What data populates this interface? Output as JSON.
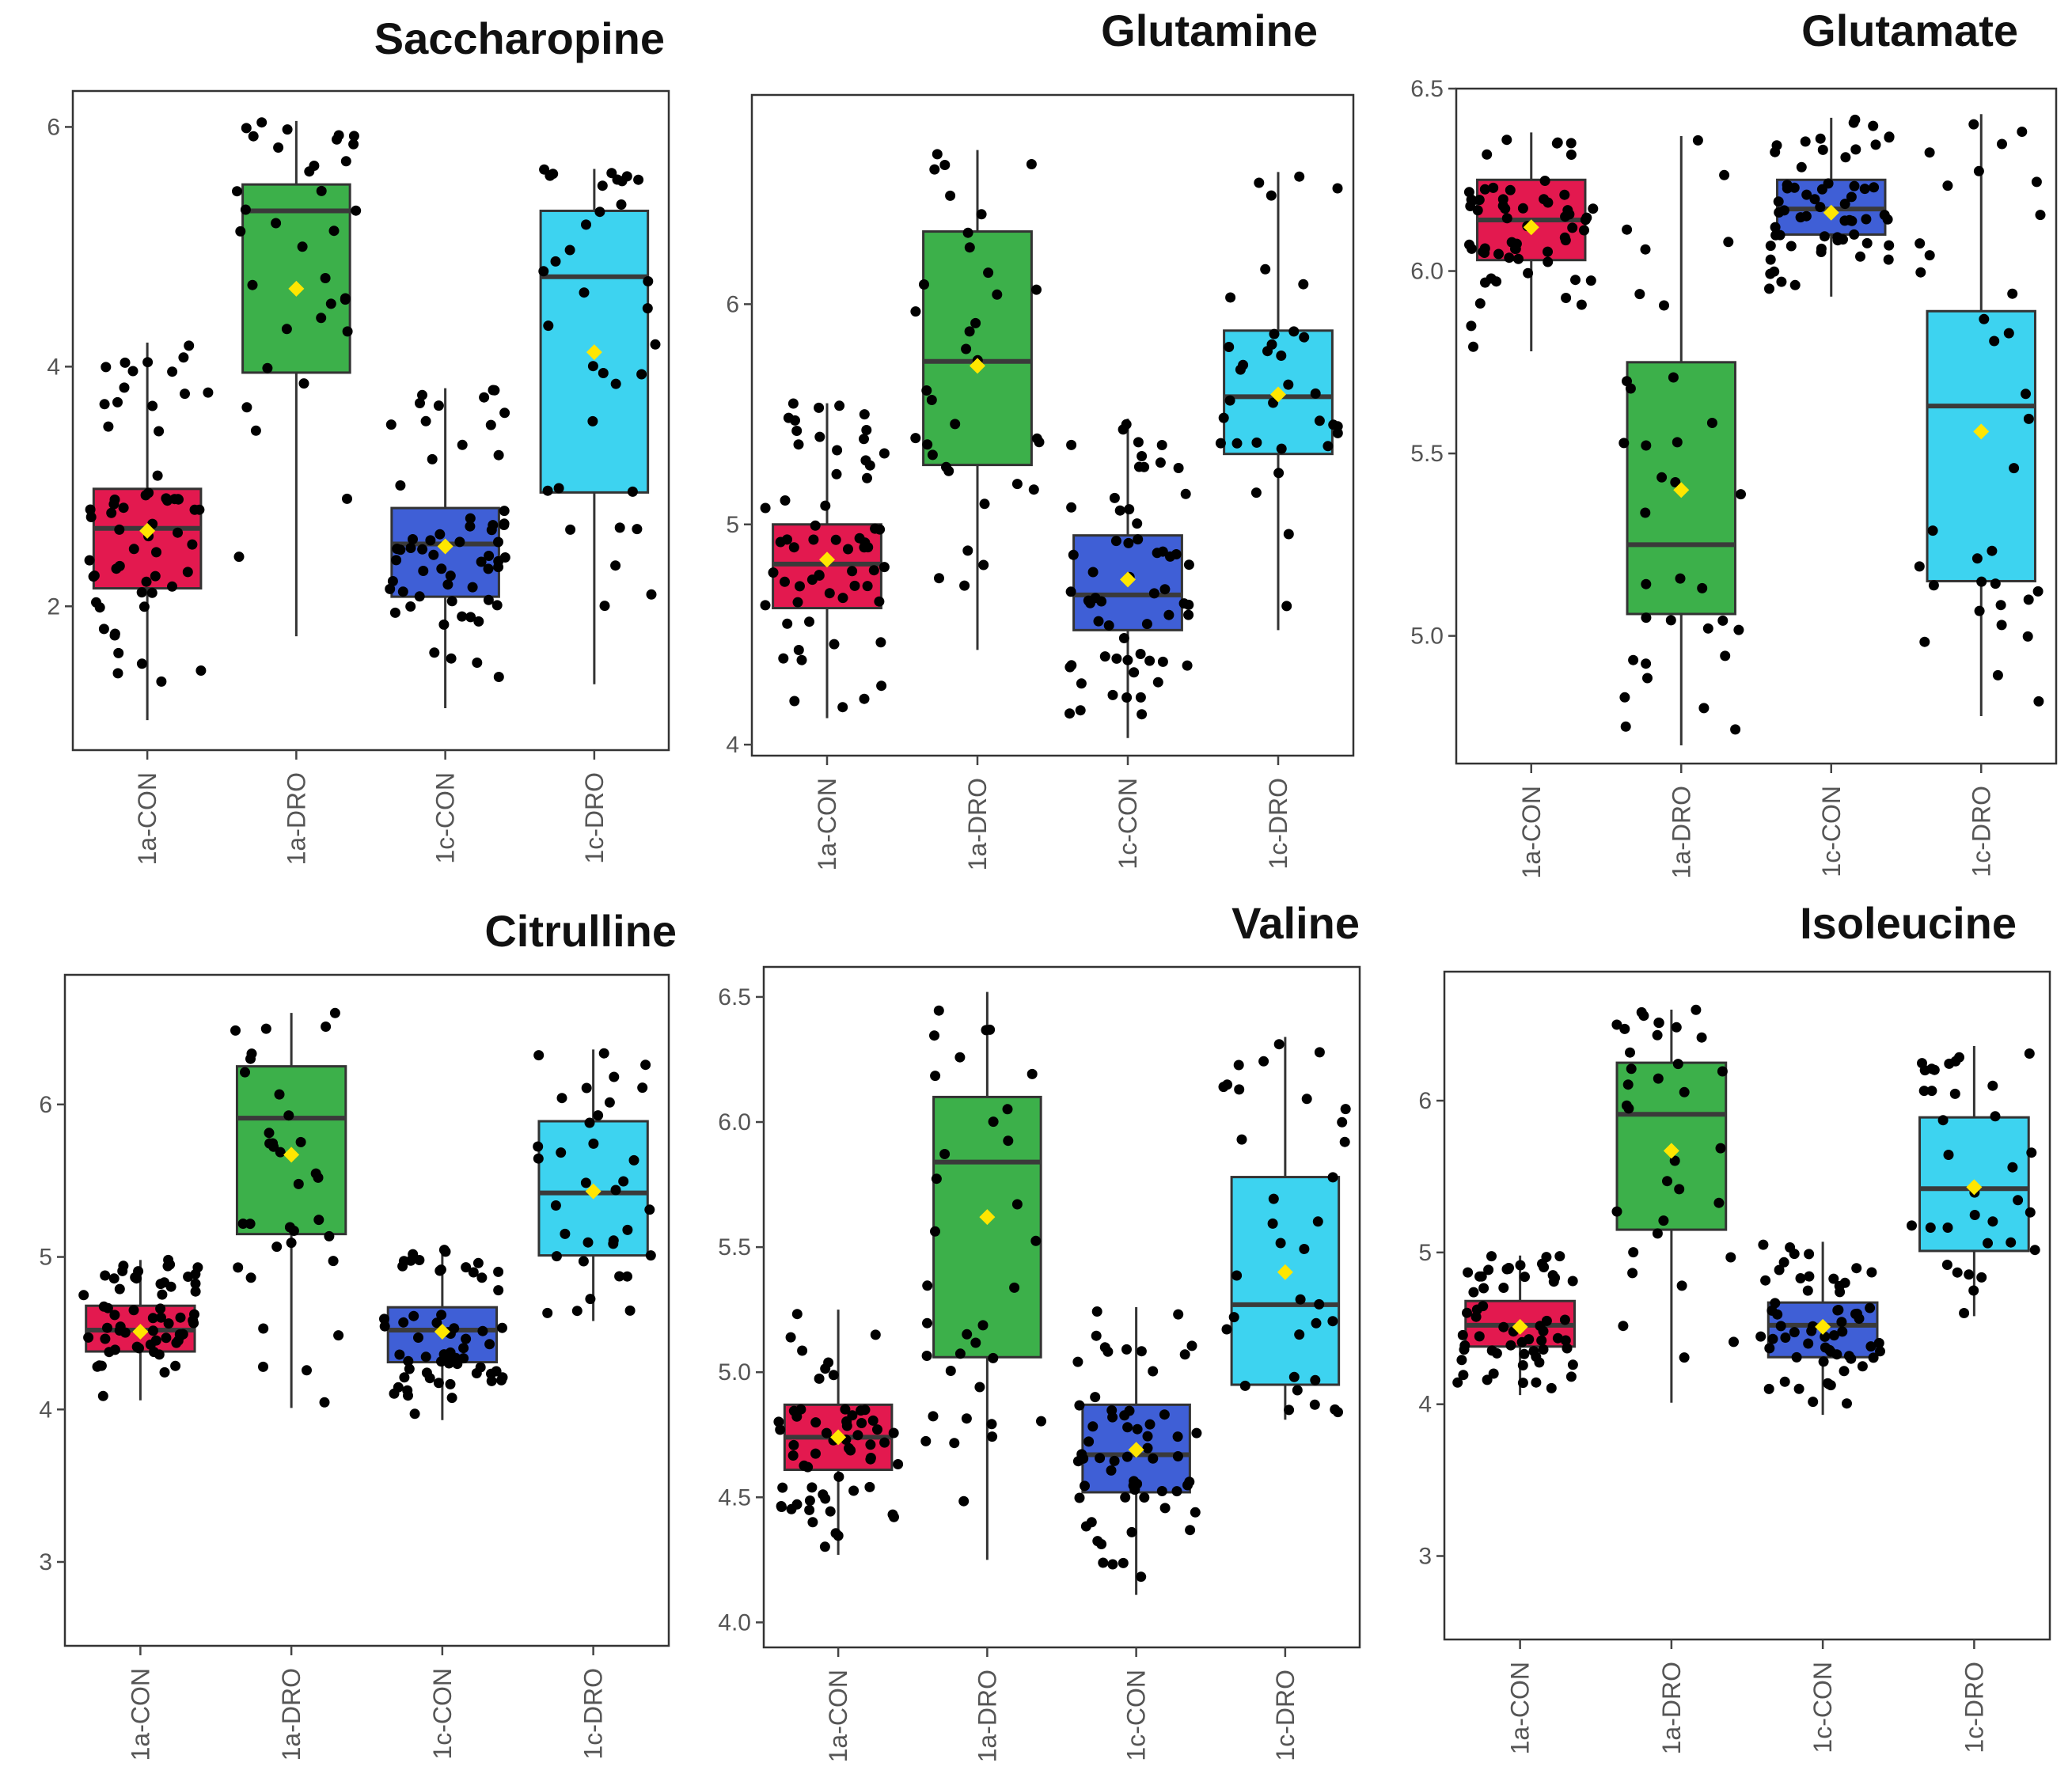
{
  "chart_data": [
    {
      "type": "box",
      "title": "Saccharopine",
      "categories": [
        "1a-CON",
        "1a-DRO",
        "1c-CON",
        "1c-DRO"
      ],
      "yticks": [
        2,
        4,
        6
      ],
      "ylim": [
        0.8,
        6.3
      ],
      "series": [
        {
          "name": "1a-CON",
          "color": "#E3194F",
          "q1": 2.15,
          "median": 2.65,
          "q3": 2.98,
          "whisker_low": 1.05,
          "whisker_high": 4.2,
          "mean": 2.63
        },
        {
          "name": "1a-DRO",
          "color": "#3CB04A",
          "q1": 3.95,
          "median": 5.3,
          "q3": 5.52,
          "whisker_low": 1.75,
          "whisker_high": 6.05,
          "mean": 4.65
        },
        {
          "name": "1c-CON",
          "color": "#3F5FD6",
          "q1": 2.08,
          "median": 2.52,
          "q3": 2.82,
          "whisker_low": 1.15,
          "whisker_high": 3.82,
          "mean": 2.5
        },
        {
          "name": "1c-DRO",
          "color": "#3DD3F0",
          "q1": 2.95,
          "median": 4.75,
          "q3": 5.3,
          "whisker_low": 1.35,
          "whisker_high": 5.65,
          "mean": 4.12
        }
      ]
    },
    {
      "type": "box",
      "title": "Glutamine",
      "categories": [
        "1a-CON",
        "1a-DRO",
        "1c-CON",
        "1c-DRO"
      ],
      "yticks": [
        4,
        5,
        6
      ],
      "ylim": [
        3.95,
        6.95
      ],
      "series": [
        {
          "name": "1a-CON",
          "color": "#E3194F",
          "q1": 4.62,
          "median": 4.82,
          "q3": 5.0,
          "whisker_low": 4.12,
          "whisker_high": 5.55,
          "mean": 4.84
        },
        {
          "name": "1a-DRO",
          "color": "#3CB04A",
          "q1": 5.27,
          "median": 5.74,
          "q3": 6.33,
          "whisker_low": 4.43,
          "whisker_high": 6.7,
          "mean": 5.72
        },
        {
          "name": "1c-CON",
          "color": "#3F5FD6",
          "q1": 4.52,
          "median": 4.68,
          "q3": 4.95,
          "whisker_low": 4.03,
          "whisker_high": 5.48,
          "mean": 4.75
        },
        {
          "name": "1c-DRO",
          "color": "#3DD3F0",
          "q1": 5.32,
          "median": 5.58,
          "q3": 5.88,
          "whisker_low": 4.52,
          "whisker_high": 6.6,
          "mean": 5.59
        }
      ]
    },
    {
      "type": "box",
      "title": "Glutamate",
      "categories": [
        "1a-CON",
        "1a-DRO",
        "1c-CON",
        "1c-DRO"
      ],
      "yticks": [
        5.0,
        5.5,
        6.0,
        6.5
      ],
      "ytick_labels": [
        "5.0",
        "5.5",
        "6.0",
        "6.5"
      ],
      "ylim": [
        4.65,
        6.5
      ],
      "series": [
        {
          "name": "1a-CON",
          "color": "#E3194F",
          "q1": 6.03,
          "median": 6.14,
          "q3": 6.25,
          "whisker_low": 5.78,
          "whisker_high": 6.38,
          "mean": 6.12
        },
        {
          "name": "1a-DRO",
          "color": "#3CB04A",
          "q1": 5.06,
          "median": 5.25,
          "q3": 5.75,
          "whisker_low": 4.7,
          "whisker_high": 6.37,
          "mean": 5.4
        },
        {
          "name": "1c-CON",
          "color": "#3F5FD6",
          "q1": 6.1,
          "median": 6.17,
          "q3": 6.25,
          "whisker_low": 5.93,
          "whisker_high": 6.42,
          "mean": 6.16
        },
        {
          "name": "1c-DRO",
          "color": "#3DD3F0",
          "q1": 5.15,
          "median": 5.63,
          "q3": 5.89,
          "whisker_low": 4.78,
          "whisker_high": 6.43,
          "mean": 5.56
        }
      ]
    },
    {
      "type": "box",
      "title": "Citrulline",
      "categories": [
        "1a-CON",
        "1a-DRO",
        "1c-CON",
        "1c-DRO"
      ],
      "yticks": [
        3,
        4,
        5,
        6
      ],
      "ylim": [
        2.45,
        6.85
      ],
      "series": [
        {
          "name": "1a-CON",
          "color": "#E3194F",
          "q1": 4.38,
          "median": 4.52,
          "q3": 4.68,
          "whisker_low": 4.06,
          "whisker_high": 4.98,
          "mean": 4.51
        },
        {
          "name": "1a-DRO",
          "color": "#3CB04A",
          "q1": 5.15,
          "median": 5.91,
          "q3": 6.25,
          "whisker_low": 4.01,
          "whisker_high": 6.6,
          "mean": 5.67
        },
        {
          "name": "1c-CON",
          "color": "#3F5FD6",
          "q1": 4.31,
          "median": 4.52,
          "q3": 4.67,
          "whisker_low": 3.93,
          "whisker_high": 5.07,
          "mean": 4.51
        },
        {
          "name": "1c-DRO",
          "color": "#3DD3F0",
          "q1": 5.01,
          "median": 5.42,
          "q3": 5.89,
          "whisker_low": 4.58,
          "whisker_high": 6.36,
          "mean": 5.43
        }
      ]
    },
    {
      "type": "box",
      "title": "Valine",
      "categories": [
        "1a-CON",
        "1a-DRO",
        "1c-CON",
        "1c-DRO"
      ],
      "yticks": [
        4.0,
        4.5,
        5.0,
        5.5,
        6.0,
        6.5
      ],
      "ytick_labels": [
        "4.0",
        "4.5",
        "5.0",
        "5.5",
        "6.0",
        "6.5"
      ],
      "ylim": [
        3.9,
        6.62
      ],
      "series": [
        {
          "name": "1a-CON",
          "color": "#E3194F",
          "q1": 4.61,
          "median": 4.74,
          "q3": 4.87,
          "whisker_low": 4.27,
          "whisker_high": 5.25,
          "mean": 4.74
        },
        {
          "name": "1a-DRO",
          "color": "#3CB04A",
          "q1": 5.06,
          "median": 5.84,
          "q3": 6.1,
          "whisker_low": 4.25,
          "whisker_high": 6.52,
          "mean": 5.62
        },
        {
          "name": "1c-CON",
          "color": "#3F5FD6",
          "q1": 4.52,
          "median": 4.67,
          "q3": 4.87,
          "whisker_low": 4.11,
          "whisker_high": 5.26,
          "mean": 4.69
        },
        {
          "name": "1c-DRO",
          "color": "#3DD3F0",
          "q1": 4.95,
          "median": 5.27,
          "q3": 5.78,
          "whisker_low": 4.81,
          "whisker_high": 6.34,
          "mean": 5.4
        }
      ]
    },
    {
      "type": "box",
      "title": "Isoleucine",
      "categories": [
        "1a-CON",
        "1a-DRO",
        "1c-CON",
        "1c-DRO"
      ],
      "yticks": [
        3,
        4,
        5,
        6
      ],
      "ylim": [
        2.45,
        6.85
      ],
      "series": [
        {
          "name": "1a-CON",
          "color": "#E3194F",
          "q1": 4.38,
          "median": 4.52,
          "q3": 4.68,
          "whisker_low": 4.06,
          "whisker_high": 4.98,
          "mean": 4.51
        },
        {
          "name": "1a-DRO",
          "color": "#3CB04A",
          "q1": 5.15,
          "median": 5.91,
          "q3": 6.25,
          "whisker_low": 4.01,
          "whisker_high": 6.6,
          "mean": 5.67
        },
        {
          "name": "1c-CON",
          "color": "#3F5FD6",
          "q1": 4.31,
          "median": 4.52,
          "q3": 4.67,
          "whisker_low": 3.93,
          "whisker_high": 5.07,
          "mean": 4.51
        },
        {
          "name": "1c-DRO",
          "color": "#3DD3F0",
          "q1": 5.01,
          "median": 5.42,
          "q3": 5.89,
          "whisker_low": 4.58,
          "whisker_high": 6.36,
          "mean": 5.43
        }
      ]
    }
  ]
}
